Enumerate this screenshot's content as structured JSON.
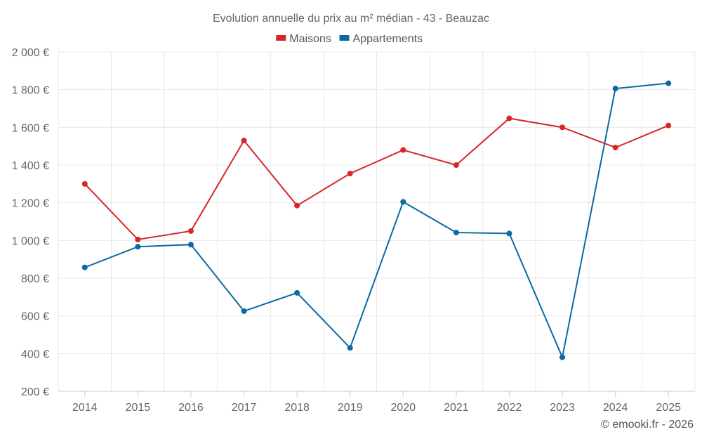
{
  "chart_data": {
    "type": "line",
    "title": "Evolution annuelle du prix au m² médian - 43 - Beauzac",
    "categories": [
      "2014",
      "2015",
      "2016",
      "2017",
      "2018",
      "2019",
      "2020",
      "2021",
      "2022",
      "2023",
      "2024",
      "2025"
    ],
    "series": [
      {
        "name": "Maisons",
        "color": "#d62728",
        "values": [
          1300,
          1005,
          1050,
          1530,
          1185,
          1355,
          1480,
          1400,
          1648,
          1600,
          1493,
          1610
        ]
      },
      {
        "name": "Appartements",
        "color": "#0a6aa1",
        "values": [
          857,
          967,
          978,
          625,
          722,
          430,
          1205,
          1042,
          1037,
          380,
          1806,
          1834
        ]
      }
    ],
    "ylim": [
      200,
      2000
    ],
    "yticks": [
      200,
      400,
      600,
      800,
      1000,
      1200,
      1400,
      1600,
      1800,
      2000
    ],
    "ytick_labels": [
      "200 €",
      "400 €",
      "600 €",
      "800 €",
      "1 000 €",
      "1 200 €",
      "1 400 €",
      "1 600 €",
      "1 800 €",
      "2 000 €"
    ],
    "xlabel": "",
    "ylabel": "",
    "grid": true,
    "legend_position": "top-center"
  },
  "credit": "© emooki.fr - 2026"
}
